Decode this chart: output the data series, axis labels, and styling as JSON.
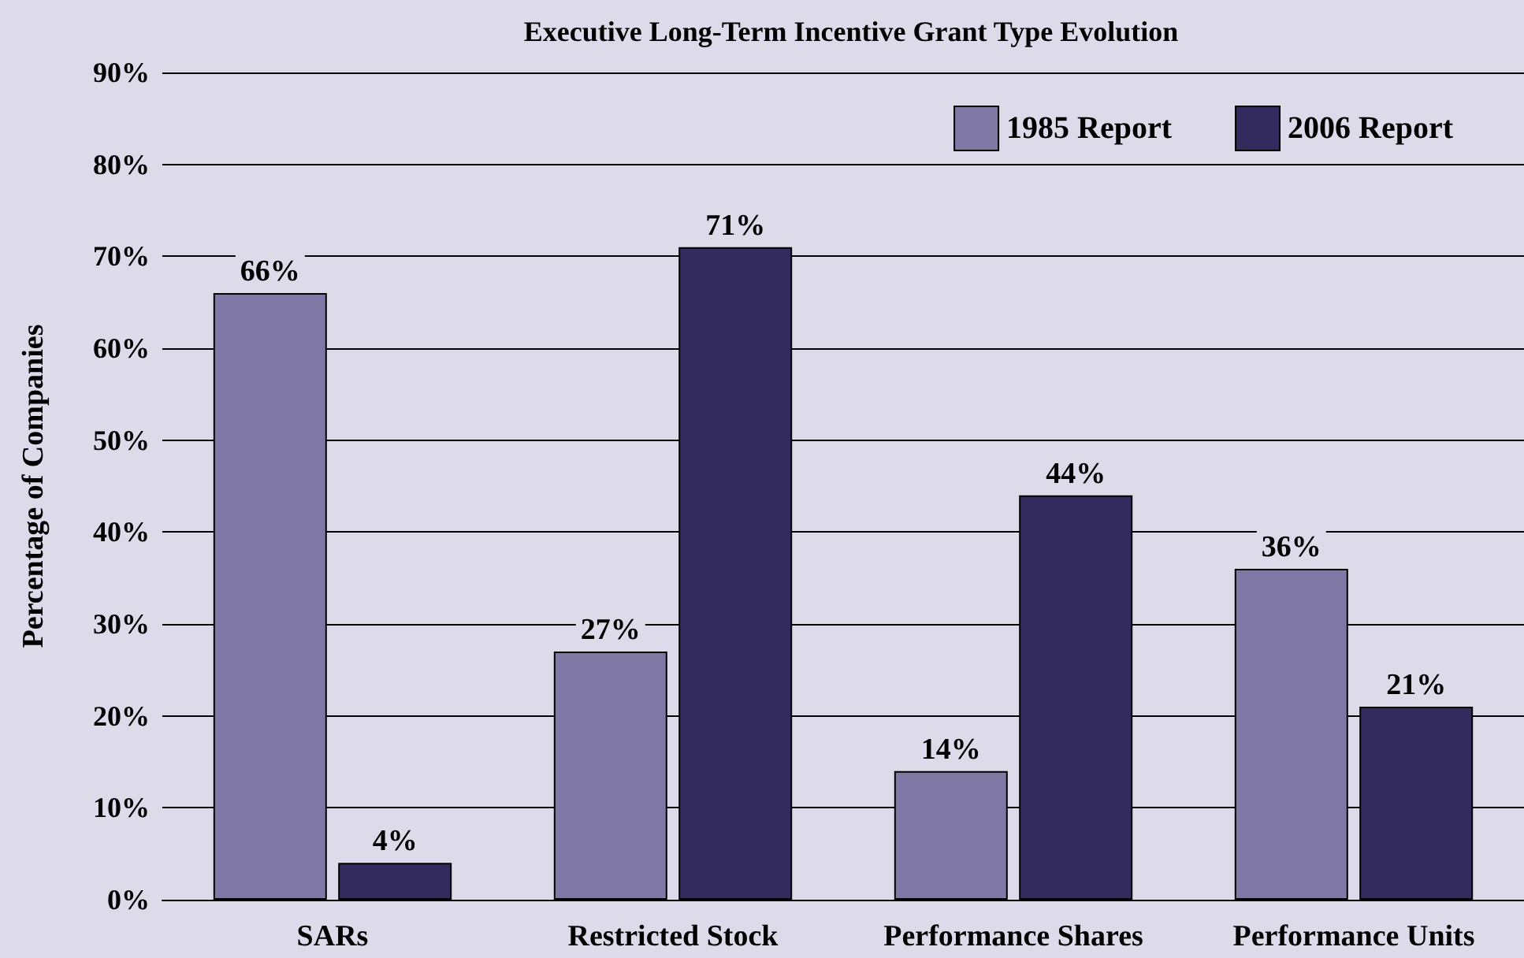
{
  "chart_data": {
    "type": "bar",
    "title": "Executive Long-Term Incentive Grant Type Evolution",
    "ylabel": "Percentage of Companies",
    "categories": [
      "SARs",
      "Restricted Stock",
      "Performance Shares",
      "Performance Units"
    ],
    "series": [
      {
        "name": "1985 Report",
        "color": "#8079a6",
        "values": [
          66,
          27,
          14,
          36
        ],
        "value_labels": [
          "66%",
          "27%",
          "14%",
          "36%"
        ]
      },
      {
        "name": "2006 Report",
        "color": "#332b5e",
        "values": [
          4,
          71,
          44,
          21
        ],
        "value_labels": [
          "4%",
          "71%",
          "44%",
          "21%"
        ]
      }
    ],
    "ylim": [
      0,
      90
    ],
    "yticks": [
      {
        "value": 0,
        "label": "0%"
      },
      {
        "value": 10,
        "label": "10%"
      },
      {
        "value": 20,
        "label": "20%"
      },
      {
        "value": 30,
        "label": "30%"
      },
      {
        "value": 40,
        "label": "40%"
      },
      {
        "value": 50,
        "label": "50%"
      },
      {
        "value": 60,
        "label": "60%"
      },
      {
        "value": 70,
        "label": "70%"
      },
      {
        "value": 80,
        "label": "80%"
      },
      {
        "value": 90,
        "label": "90%"
      }
    ],
    "grid": "y",
    "legend": "top right"
  }
}
